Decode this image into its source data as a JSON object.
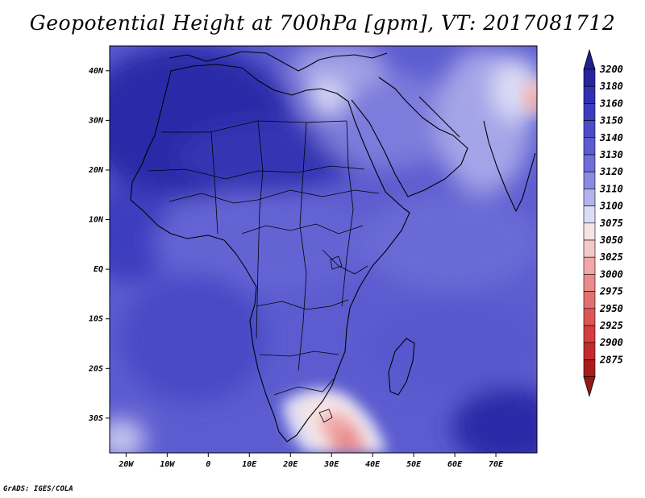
{
  "title": "Geopotential Height at 700hPa [gpm], VT: 2017081712",
  "credit": "GrADS: IGES/COLA",
  "map": {
    "lon_range": [
      -24,
      80
    ],
    "lat_range": [
      -37,
      45
    ],
    "lat_ticks": [
      {
        "lat": 40,
        "label": "40N"
      },
      {
        "lat": 30,
        "label": "30N"
      },
      {
        "lat": 20,
        "label": "20N"
      },
      {
        "lat": 10,
        "label": "10N"
      },
      {
        "lat": 0,
        "label": "EQ"
      },
      {
        "lat": -10,
        "label": "10S"
      },
      {
        "lat": -20,
        "label": "20S"
      },
      {
        "lat": -30,
        "label": "30S"
      }
    ],
    "lon_ticks": [
      {
        "lon": -20,
        "label": "20W"
      },
      {
        "lon": -10,
        "label": "10W"
      },
      {
        "lon": 0,
        "label": "0"
      },
      {
        "lon": 10,
        "label": "10E"
      },
      {
        "lon": 20,
        "label": "20E"
      },
      {
        "lon": 30,
        "label": "30E"
      },
      {
        "lon": 40,
        "label": "40E"
      },
      {
        "lon": 50,
        "label": "50E"
      },
      {
        "lon": 60,
        "label": "60E"
      },
      {
        "lon": 70,
        "label": "70E"
      }
    ]
  },
  "colorbar": {
    "levels": [
      {
        "value": "3200",
        "color": "#28249c"
      },
      {
        "value": "3180",
        "color": "#3030b0"
      },
      {
        "value": "3160",
        "color": "#3c3cc0"
      },
      {
        "value": "3150",
        "color": "#4c4cc8"
      },
      {
        "value": "3140",
        "color": "#5c5cd0"
      },
      {
        "value": "3130",
        "color": "#6e6ed8"
      },
      {
        "value": "3120",
        "color": "#8a8ae0"
      },
      {
        "value": "3110",
        "color": "#b4b4ec"
      },
      {
        "value": "3100",
        "color": "#dcdcf6"
      },
      {
        "value": "3075",
        "color": "#f6e4e4"
      },
      {
        "value": "3050",
        "color": "#f4c8c8"
      },
      {
        "value": "3025",
        "color": "#f0a8a8"
      },
      {
        "value": "3000",
        "color": "#e88c8c"
      },
      {
        "value": "2975",
        "color": "#e27070"
      },
      {
        "value": "2950",
        "color": "#dc5656"
      },
      {
        "value": "2925",
        "color": "#d43e3e"
      },
      {
        "value": "2900",
        "color": "#c42c2c"
      },
      {
        "value": "2875",
        "color": "#a81c1c"
      }
    ],
    "max_arrow_color": "#20208c",
    "min_arrow_color": "#981818"
  }
}
